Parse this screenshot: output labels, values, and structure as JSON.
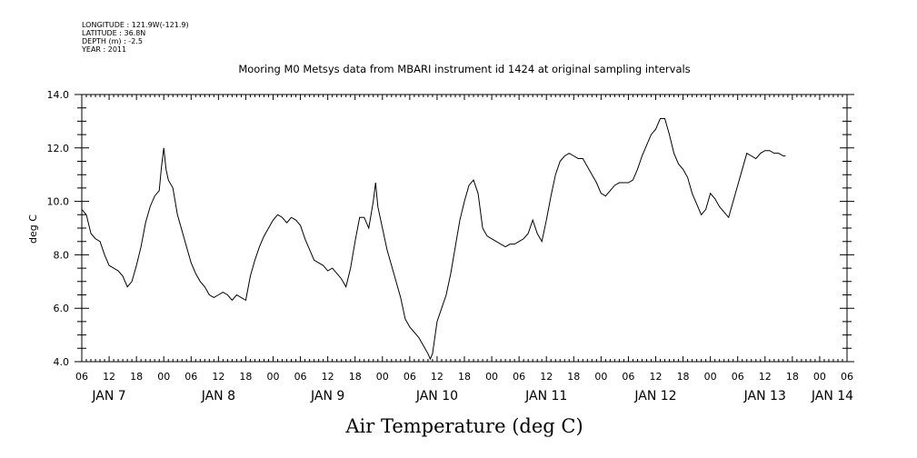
{
  "meta": {
    "longitude": "LONGITUDE : 121.9W(-121.9)",
    "latitude": "LATITUDE : 36.8N",
    "depth": "DEPTH (m) : -2.5",
    "year": "YEAR : 2011"
  },
  "chart_data": {
    "type": "line",
    "title": "Mooring M0 Metsys data from MBARI instrument id 1424 at original sampling intervals",
    "xlabel": "Air Temperature (deg C)",
    "ylabel": "deg C",
    "ylim": [
      4.0,
      14.0
    ],
    "yticks": [
      "4.0",
      "6.0",
      "8.0",
      "10.0",
      "12.0",
      "14.0"
    ],
    "xlim_hours": [
      6,
      174
    ],
    "hour_ticks": [
      "06",
      "12",
      "18",
      "00",
      "06",
      "12",
      "18",
      "00",
      "06",
      "12",
      "18",
      "00",
      "06",
      "12",
      "18",
      "00",
      "06",
      "12",
      "18",
      "00",
      "06",
      "12",
      "18",
      "00",
      "06",
      "12",
      "18",
      "00",
      "06"
    ],
    "day_labels": [
      "JAN  7",
      "JAN  8",
      "JAN  9",
      "JAN 10",
      "JAN 11",
      "JAN 12",
      "JAN 13",
      "JAN 14"
    ],
    "grid": false,
    "line_color": "#000000",
    "series": [
      {
        "points": [
          [
            6,
            9.7
          ],
          [
            7,
            9.5
          ],
          [
            8,
            8.8
          ],
          [
            9,
            8.6
          ],
          [
            10,
            8.5
          ],
          [
            11,
            8.0
          ],
          [
            12,
            7.6
          ],
          [
            13,
            7.5
          ],
          [
            14,
            7.4
          ],
          [
            15,
            7.2
          ],
          [
            16,
            6.8
          ],
          [
            17,
            7.0
          ],
          [
            18,
            7.6
          ],
          [
            19,
            8.3
          ],
          [
            20,
            9.2
          ],
          [
            21,
            9.8
          ],
          [
            22,
            10.2
          ],
          [
            23,
            10.4
          ],
          [
            23.5,
            11.3
          ],
          [
            24,
            12.0
          ],
          [
            24.5,
            11.2
          ],
          [
            25,
            10.8
          ],
          [
            26,
            10.5
          ],
          [
            27,
            9.5
          ],
          [
            28,
            8.9
          ],
          [
            29,
            8.3
          ],
          [
            30,
            7.7
          ],
          [
            31,
            7.3
          ],
          [
            32,
            7.0
          ],
          [
            33,
            6.8
          ],
          [
            34,
            6.5
          ],
          [
            35,
            6.4
          ],
          [
            36,
            6.5
          ],
          [
            37,
            6.6
          ],
          [
            38,
            6.5
          ],
          [
            39,
            6.3
          ],
          [
            40,
            6.5
          ],
          [
            41,
            6.4
          ],
          [
            42,
            6.3
          ],
          [
            43,
            7.2
          ],
          [
            44,
            7.8
          ],
          [
            45,
            8.3
          ],
          [
            46,
            8.7
          ],
          [
            47,
            9.0
          ],
          [
            48,
            9.3
          ],
          [
            49,
            9.5
          ],
          [
            50,
            9.4
          ],
          [
            51,
            9.2
          ],
          [
            52,
            9.4
          ],
          [
            53,
            9.3
          ],
          [
            54,
            9.1
          ],
          [
            55,
            8.6
          ],
          [
            56,
            8.2
          ],
          [
            57,
            7.8
          ],
          [
            58,
            7.7
          ],
          [
            59,
            7.6
          ],
          [
            60,
            7.4
          ],
          [
            61,
            7.5
          ],
          [
            62,
            7.3
          ],
          [
            63,
            7.1
          ],
          [
            64,
            6.8
          ],
          [
            65,
            7.5
          ],
          [
            66,
            8.5
          ],
          [
            67,
            9.4
          ],
          [
            68,
            9.4
          ],
          [
            69,
            9.0
          ],
          [
            70,
            10.0
          ],
          [
            70.5,
            10.7
          ],
          [
            71,
            9.8
          ],
          [
            72,
            9.0
          ],
          [
            73,
            8.2
          ],
          [
            74,
            7.6
          ],
          [
            75,
            7.0
          ],
          [
            76,
            6.4
          ],
          [
            77,
            5.6
          ],
          [
            78,
            5.3
          ],
          [
            79,
            5.1
          ],
          [
            80,
            4.9
          ],
          [
            81,
            4.6
          ],
          [
            82,
            4.3
          ],
          [
            82.5,
            4.1
          ],
          [
            83,
            4.3
          ],
          [
            84,
            5.5
          ],
          [
            85,
            6.0
          ],
          [
            86,
            6.5
          ],
          [
            87,
            7.3
          ],
          [
            88,
            8.3
          ],
          [
            89,
            9.3
          ],
          [
            90,
            10.0
          ],
          [
            91,
            10.6
          ],
          [
            92,
            10.8
          ],
          [
            93,
            10.3
          ],
          [
            94,
            9.0
          ],
          [
            95,
            8.7
          ],
          [
            96,
            8.6
          ],
          [
            97,
            8.5
          ],
          [
            98,
            8.4
          ],
          [
            99,
            8.3
          ],
          [
            100,
            8.4
          ],
          [
            101,
            8.4
          ],
          [
            102,
            8.5
          ],
          [
            103,
            8.6
          ],
          [
            104,
            8.8
          ],
          [
            105,
            9.3
          ],
          [
            106,
            8.8
          ],
          [
            107,
            8.5
          ],
          [
            108,
            9.3
          ],
          [
            109,
            10.2
          ],
          [
            110,
            11.0
          ],
          [
            111,
            11.5
          ],
          [
            112,
            11.7
          ],
          [
            113,
            11.8
          ],
          [
            114,
            11.7
          ],
          [
            115,
            11.6
          ],
          [
            116,
            11.6
          ],
          [
            117,
            11.3
          ],
          [
            118,
            11.0
          ],
          [
            119,
            10.7
          ],
          [
            120,
            10.3
          ],
          [
            121,
            10.2
          ],
          [
            122,
            10.4
          ],
          [
            123,
            10.6
          ],
          [
            124,
            10.7
          ],
          [
            125,
            10.7
          ],
          [
            126,
            10.7
          ],
          [
            127,
            10.8
          ],
          [
            128,
            11.2
          ],
          [
            129,
            11.7
          ],
          [
            130,
            12.1
          ],
          [
            131,
            12.5
          ],
          [
            132,
            12.7
          ],
          [
            133,
            13.1
          ],
          [
            134,
            13.1
          ],
          [
            135,
            12.5
          ],
          [
            136,
            11.8
          ],
          [
            137,
            11.4
          ],
          [
            138,
            11.2
          ],
          [
            139,
            10.9
          ],
          [
            140,
            10.3
          ],
          [
            141,
            9.9
          ],
          [
            142,
            9.5
          ],
          [
            143,
            9.7
          ],
          [
            144,
            10.3
          ],
          [
            145,
            10.1
          ],
          [
            146,
            9.8
          ],
          [
            147,
            9.6
          ],
          [
            148,
            9.4
          ],
          [
            149,
            10.0
          ],
          [
            150,
            10.6
          ],
          [
            151,
            11.2
          ],
          [
            152,
            11.8
          ],
          [
            153,
            11.7
          ],
          [
            154,
            11.6
          ],
          [
            155,
            11.8
          ],
          [
            156,
            11.9
          ],
          [
            157,
            11.9
          ],
          [
            158,
            11.8
          ],
          [
            159,
            11.8
          ],
          [
            160,
            11.7
          ],
          [
            160.5,
            11.7
          ]
        ]
      }
    ]
  }
}
